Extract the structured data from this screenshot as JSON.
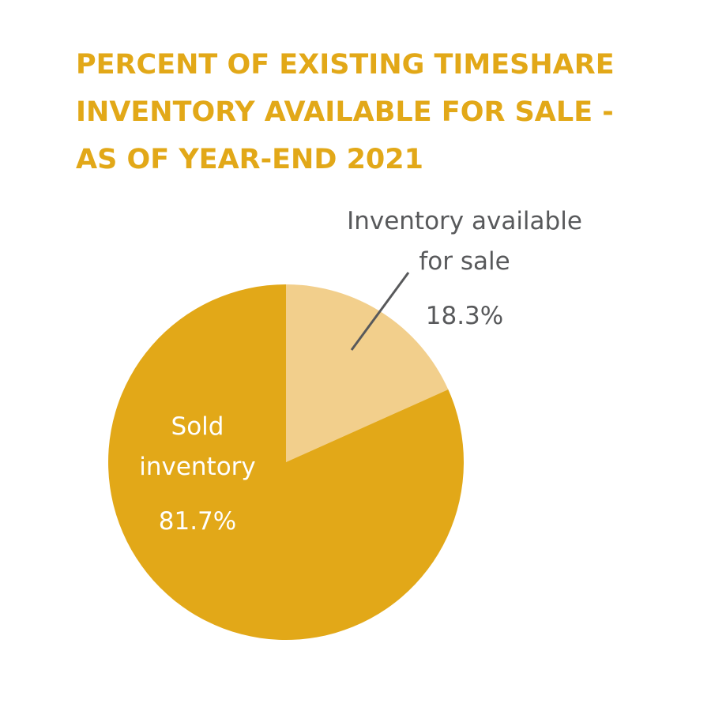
{
  "chart_data": {
    "type": "pie",
    "title_lines": [
      "PERCENT OF EXISTING TIMESHARE",
      "INVENTORY AVAILABLE FOR SALE -",
      "AS OF YEAR-END 2021"
    ],
    "slices": [
      {
        "name": "Inventory available for sale",
        "label_lines": [
          "Inventory available",
          "for sale"
        ],
        "value": 18.3,
        "value_label": "18.3%",
        "color": "#F2CF8C"
      },
      {
        "name": "Sold inventory",
        "label_lines": [
          "Sold",
          "inventory"
        ],
        "value": 81.7,
        "value_label": "81.7%",
        "color": "#E2A818"
      }
    ]
  },
  "colors": {
    "title": "#E2A818",
    "label_text": "#58595B",
    "leader_line": "#58595B",
    "inside_text": "#ffffff"
  }
}
